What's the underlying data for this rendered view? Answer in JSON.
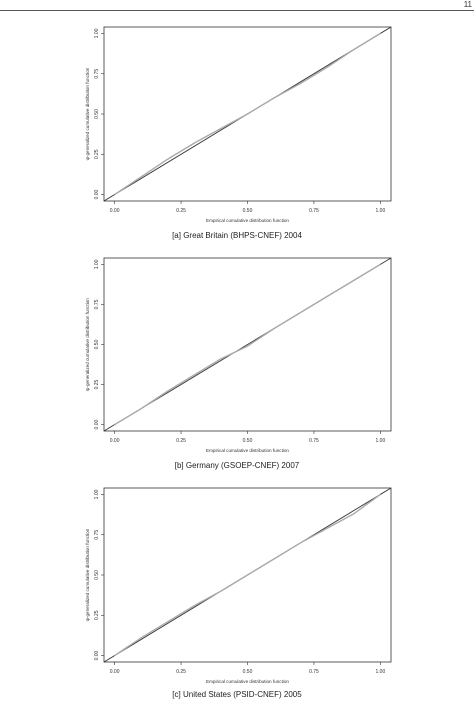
{
  "page": {
    "number": "11"
  },
  "chart_data": [
    {
      "type": "line",
      "caption": "[a] Great Britain (BHPS-CNEF) 2004",
      "xlabel": "Empirical cumulative distribution function",
      "ylabel": "ψ-generalized cumulative distribution function",
      "xlim": [
        -0.04,
        1.04
      ],
      "ylim": [
        -0.04,
        1.04
      ],
      "x_ticks": [
        "0.00",
        "0.25",
        "0.50",
        "0.75",
        "1.00"
      ],
      "y_ticks": [
        "0.00",
        "0.25",
        "0.50",
        "0.75",
        "1.00"
      ],
      "grid": false,
      "series": [
        {
          "x": [
            -0.04,
            1.04
          ],
          "y": [
            -0.04,
            1.04
          ]
        },
        {
          "x": [
            0.0,
            0.1,
            0.2,
            0.3,
            0.4,
            0.5,
            0.6,
            0.7,
            0.8,
            0.9,
            1.0
          ],
          "y": [
            0.0,
            0.11,
            0.22,
            0.32,
            0.41,
            0.5,
            0.6,
            0.69,
            0.79,
            0.9,
            1.0
          ]
        }
      ],
      "colors": {
        "reference": "#333333",
        "fit": "#aaaaaa"
      }
    },
    {
      "type": "line",
      "caption": "[b] Germany (GSOEP-CNEF) 2007",
      "xlabel": "Empirical cumulative distribution function",
      "ylabel": "ψ-generalized cumulative distribution function",
      "xlim": [
        -0.04,
        1.04
      ],
      "ylim": [
        -0.04,
        1.04
      ],
      "x_ticks": [
        "0.00",
        "0.25",
        "0.50",
        "0.75",
        "1.00"
      ],
      "y_ticks": [
        "0.00",
        "0.25",
        "0.50",
        "0.75",
        "1.00"
      ],
      "grid": false,
      "series": [
        {
          "x": [
            -0.04,
            1.04
          ],
          "y": [
            -0.04,
            1.04
          ]
        },
        {
          "x": [
            0.0,
            0.1,
            0.2,
            0.3,
            0.4,
            0.5,
            0.6,
            0.7,
            0.8,
            0.9,
            1.0
          ],
          "y": [
            0.0,
            0.1,
            0.21,
            0.31,
            0.41,
            0.49,
            0.6,
            0.7,
            0.8,
            0.9,
            1.0
          ]
        }
      ],
      "colors": {
        "reference": "#333333",
        "fit": "#aaaaaa"
      }
    },
    {
      "type": "line",
      "caption": "[c] United States (PSID-CNEF) 2005",
      "xlabel": "Empirical cumulative distribution function",
      "ylabel": "ψ-generalized cumulative distribution function",
      "xlim": [
        -0.04,
        1.04
      ],
      "ylim": [
        -0.04,
        1.04
      ],
      "x_ticks": [
        "0.00",
        "0.25",
        "0.50",
        "0.75",
        "1.00"
      ],
      "y_ticks": [
        "0.00",
        "0.25",
        "0.50",
        "0.75",
        "1.00"
      ],
      "grid": false,
      "series": [
        {
          "x": [
            -0.04,
            1.04
          ],
          "y": [
            -0.04,
            1.04
          ]
        },
        {
          "x": [
            0.0,
            0.1,
            0.2,
            0.3,
            0.4,
            0.5,
            0.6,
            0.7,
            0.8,
            0.9,
            1.0
          ],
          "y": [
            0.0,
            0.11,
            0.21,
            0.31,
            0.4,
            0.5,
            0.6,
            0.7,
            0.79,
            0.88,
            1.0
          ]
        }
      ],
      "colors": {
        "reference": "#333333",
        "fit": "#aaaaaa"
      }
    }
  ]
}
